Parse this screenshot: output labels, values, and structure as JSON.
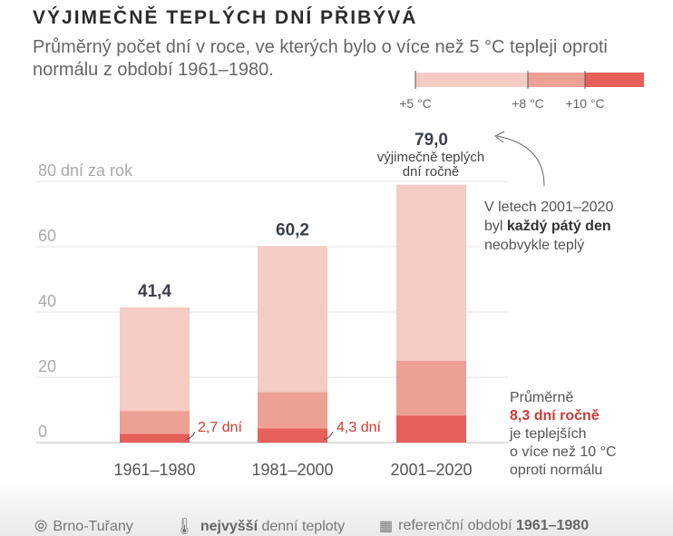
{
  "title": "VÝJIMEČNĚ TEPLÝCH DNÍ PŘIBÝVÁ",
  "subtitle": "Průměrný počet dní v roce, ve kterých bylo o více než 5 °C tepleji oproti normálu z období 1961–1980.",
  "legend": {
    "labels": [
      "+5 °C",
      "+8 °C",
      "+10 °C"
    ],
    "colors": [
      "#f5cbc5",
      "#eda094",
      "#e65f5a"
    ]
  },
  "chart_data": {
    "type": "bar",
    "stacked": true,
    "categories": [
      "1961–1980",
      "1981–2000",
      "2001–2020"
    ],
    "series": [
      {
        "name": "+10 °C",
        "values": [
          2.7,
          4.3,
          8.3
        ],
        "color": "#e65f5a"
      },
      {
        "name": "+8 °C",
        "values": [
          7.0,
          11.2,
          16.7
        ],
        "color": "#eda094"
      },
      {
        "name": "+5 °C",
        "values": [
          31.7,
          44.7,
          54.0
        ],
        "color": "#f5cbc5"
      }
    ],
    "totals": [
      "41,4",
      "60,2",
      "79,0"
    ],
    "low_labels": [
      "2,7 dní",
      "4,3 dní"
    ],
    "ylim": [
      0,
      80
    ],
    "yticks": [
      0,
      20,
      40,
      60,
      80
    ],
    "ytick_labels": [
      "0",
      "20",
      "40",
      "60",
      "80 dní za rok"
    ],
    "annotations": {
      "total_note": [
        "výjimečně teplých",
        "dní ročně"
      ],
      "note1": {
        "l1": "V letech 2001–2020",
        "l2a": "byl ",
        "l2b": "každý pátý den",
        "l3": "neobvykle teplý"
      },
      "note2": {
        "l1": "Průměrně",
        "l2": "8,3 dní ročně",
        "l3": "je teplejších",
        "l4": "o více než 10 °C",
        "l5": "oproti normálu"
      }
    }
  },
  "footer": {
    "location": "Brno-Tuřany",
    "temp_bold": "nejvyšší",
    "temp_rest": " denní teploty",
    "ref_rest": "referenční období ",
    "ref_bold": "1961–1980"
  }
}
